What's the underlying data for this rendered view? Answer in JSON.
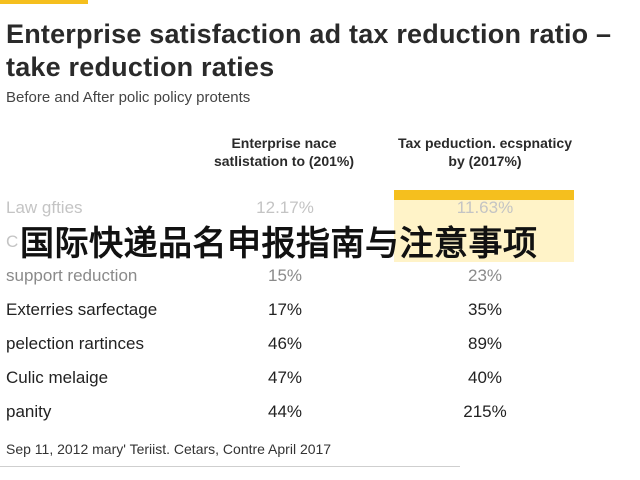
{
  "header": {
    "title": "Enterprise satisfaction ad tax reduction ratio – take reduction raties",
    "subtitle": "Before and After polic policy protents"
  },
  "table": {
    "columns": [
      "Enterprise nace satlistation to (201%)",
      "Tax peduction. ecspnaticy by (2017%)"
    ],
    "rows": [
      {
        "label": "Law gfties",
        "v1": "12.17%",
        "v2": "11.63%"
      },
      {
        "label": "C",
        "v1": "",
        "v2": ""
      },
      {
        "label": "support reduction",
        "v1": "15%",
        "v2": "23%"
      },
      {
        "label": "Exterries sarfectage",
        "v1": "17%",
        "v2": "35%"
      },
      {
        "label": "pelection rartinces",
        "v1": "46%",
        "v2": "89%"
      },
      {
        "label": "Culic melaige",
        "v1": "47%",
        "v2": "40%"
      },
      {
        "label": "panity",
        "v1": "44%",
        "v2": "215%"
      }
    ]
  },
  "source": "Sep 11, 2012 mary' Teriist. Cetars, Contre April 2017",
  "overlay": "国际快递品名申报指南与注意事项",
  "colors": {
    "accent": "#f5bf1e",
    "highlight": "#fff3c8"
  }
}
